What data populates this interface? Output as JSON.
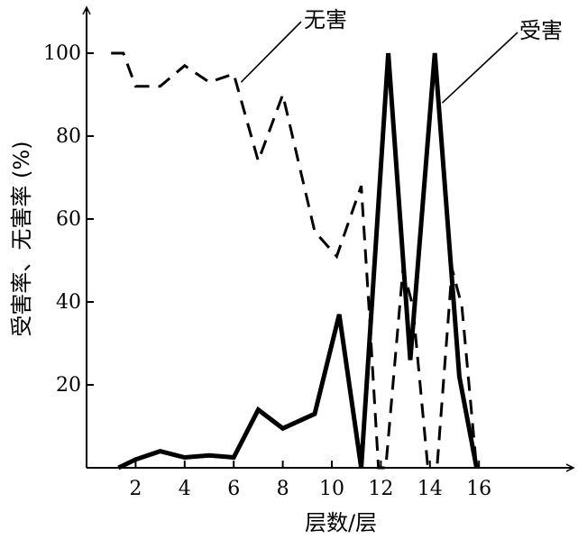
{
  "chart_data": {
    "type": "line",
    "xlabel": "层数/层",
    "ylabel": "受害率、无害率 (%)",
    "xlim": [
      0,
      19
    ],
    "ylim": [
      0,
      105
    ],
    "xticks": [
      "2",
      "4",
      "6",
      "8",
      "10",
      "12",
      "14",
      "16"
    ],
    "yticks": [
      "20",
      "40",
      "60",
      "80",
      "100"
    ],
    "grid": false,
    "legend": "direct labels",
    "series": [
      {
        "name": "无害",
        "style": "dashed",
        "color": "#000000",
        "points": [
          [
            1,
            100
          ],
          [
            1.5,
            100
          ],
          [
            2,
            92
          ],
          [
            3,
            92
          ],
          [
            4,
            97
          ],
          [
            5,
            93
          ],
          [
            6,
            95
          ],
          [
            7,
            74
          ],
          [
            8,
            90
          ],
          [
            9.3,
            57
          ],
          [
            10.2,
            51
          ],
          [
            11.2,
            68
          ],
          [
            11.5,
            40
          ],
          [
            11.9,
            0
          ],
          [
            12.2,
            0
          ],
          [
            12.9,
            48
          ],
          [
            13.3,
            39
          ],
          [
            13.9,
            1
          ],
          [
            14.3,
            1
          ],
          [
            14.9,
            48
          ],
          [
            15.3,
            39
          ],
          [
            15.9,
            0
          ]
        ]
      },
      {
        "name": "受害",
        "style": "solid",
        "color": "#000000",
        "points": [
          [
            1.3,
            0
          ],
          [
            2,
            2
          ],
          [
            3,
            4
          ],
          [
            4,
            2.5
          ],
          [
            5,
            3
          ],
          [
            6,
            2.5
          ],
          [
            7,
            14
          ],
          [
            8,
            9.5
          ],
          [
            9.3,
            13
          ],
          [
            10.3,
            37
          ],
          [
            11.2,
            0
          ],
          [
            12.3,
            100
          ],
          [
            13.2,
            26
          ],
          [
            14.2,
            100
          ],
          [
            15.2,
            22
          ],
          [
            15.9,
            0
          ]
        ]
      }
    ],
    "annotations": [
      {
        "text": "无害",
        "series": "无害"
      },
      {
        "text": "受害",
        "series": "受害"
      }
    ]
  }
}
